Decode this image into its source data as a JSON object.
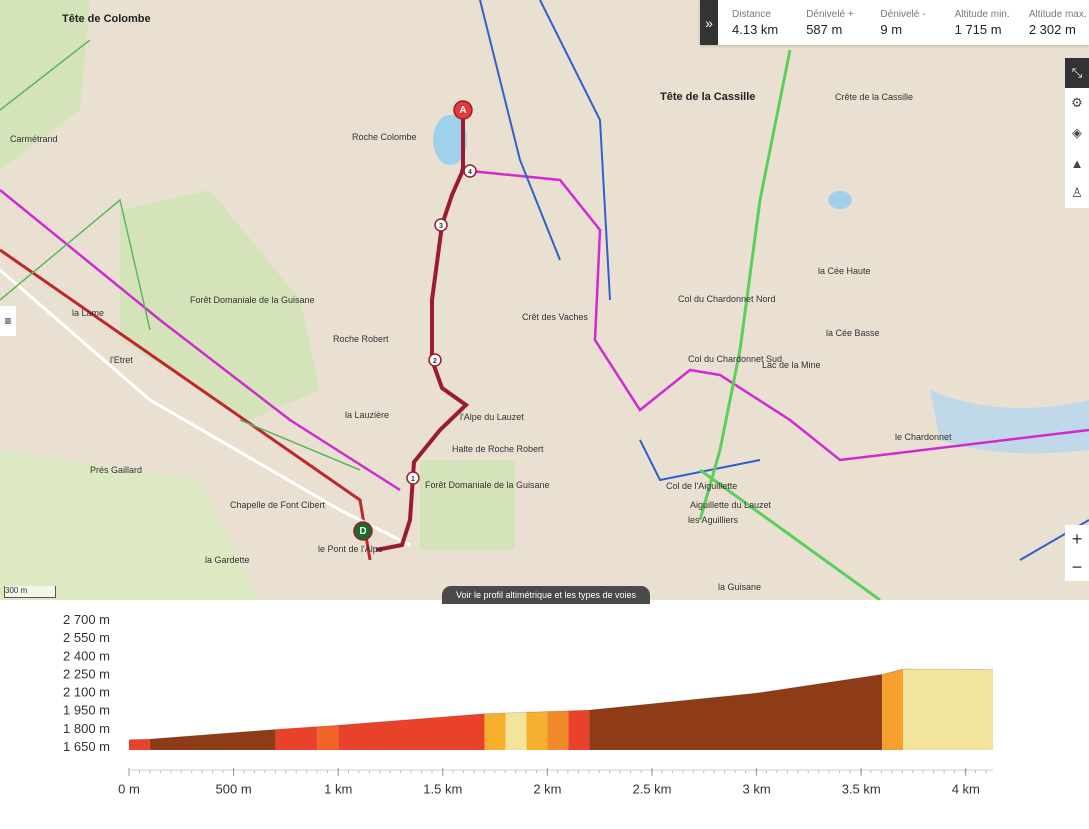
{
  "stats": [
    {
      "label": "Distance",
      "value": "4.13 km"
    },
    {
      "label": "Dénivelé +",
      "value": "587 m"
    },
    {
      "label": "Dénivelé -",
      "value": "9 m"
    },
    {
      "label": "Altitude min.",
      "value": "1 715 m"
    },
    {
      "label": "Altitude max.",
      "value": "2 302 m"
    }
  ],
  "map": {
    "labels": [
      "Tête de Colombe",
      "Tête de la Cassille",
      "Roche Colombe",
      "Carmétrand",
      "Forêt Domaniale de la Guisane",
      "Roche Robert",
      "la Lauzière",
      "Prés Gaillard",
      "Chapelle de Font Cibert",
      "le Pont de l'Alpe",
      "la Gardette",
      "l'Alpe du Lauzet",
      "Halte de Roche Robert",
      "Crêt des Vaches",
      "Col du Chardonnet Nord",
      "Col du Chardonnet Sud",
      "la Cée Haute",
      "la Cée Basse",
      "Lac de la Mine",
      "le Chardonnet",
      "Aiguillette du Lauzet",
      "les Aguilliers",
      "Col de l'Aiguillette",
      "la Guisane",
      "Forêt Domaniale de la Guisane",
      "la Lame",
      "l'Etret",
      "Crête de la Cassille"
    ],
    "markers": [
      "A",
      "D",
      "1",
      "2",
      "3",
      "4"
    ],
    "scale": "300 m",
    "profile_button": "Voir le profil altimétrique et les types de voies"
  },
  "chart_data": {
    "type": "area",
    "x": [
      0,
      0.1,
      0.7,
      1.0,
      1.7,
      2.2,
      3.0,
      3.6,
      3.7,
      4.13
    ],
    "values": [
      1715,
      1720,
      1800,
      1835,
      1930,
      1960,
      2100,
      2255,
      2300,
      2295
    ],
    "segments": [
      {
        "from": 0,
        "to": 0.1,
        "color": "#e8432a"
      },
      {
        "from": 0.1,
        "to": 0.7,
        "color": "#8e3b17"
      },
      {
        "from": 0.7,
        "to": 0.9,
        "color": "#e8432a"
      },
      {
        "from": 0.9,
        "to": 1.0,
        "color": "#f0642a"
      },
      {
        "from": 1.0,
        "to": 1.7,
        "color": "#e8432a"
      },
      {
        "from": 1.7,
        "to": 1.8,
        "color": "#f5b02e"
      },
      {
        "from": 1.8,
        "to": 1.9,
        "color": "#f2e49a"
      },
      {
        "from": 1.9,
        "to": 2.0,
        "color": "#f5b02e"
      },
      {
        "from": 2.0,
        "to": 2.1,
        "color": "#f08a2a"
      },
      {
        "from": 2.1,
        "to": 2.2,
        "color": "#e8432a"
      },
      {
        "from": 2.2,
        "to": 3.6,
        "color": "#8e3b17"
      },
      {
        "from": 3.6,
        "to": 3.7,
        "color": "#f5a02e"
      },
      {
        "from": 3.7,
        "to": 4.13,
        "color": "#f2e49a"
      }
    ],
    "xlim": [
      0,
      4.13
    ],
    "ylim": [
      1630,
      2730
    ],
    "xticks": [
      {
        "value": 0,
        "label": "0 m"
      },
      {
        "value": 0.5,
        "label": "500 m"
      },
      {
        "value": 1,
        "label": "1 km"
      },
      {
        "value": 1.5,
        "label": "1.5 km"
      },
      {
        "value": 2,
        "label": "2 km"
      },
      {
        "value": 2.5,
        "label": "2.5 km"
      },
      {
        "value": 3,
        "label": "3 km"
      },
      {
        "value": 3.5,
        "label": "3.5 km"
      },
      {
        "value": 4,
        "label": "4 km"
      }
    ],
    "yticks": [
      {
        "value": 1650,
        "label": "1 650 m"
      },
      {
        "value": 1800,
        "label": "1 800 m"
      },
      {
        "value": 1950,
        "label": "1 950 m"
      },
      {
        "value": 2100,
        "label": "2 100 m"
      },
      {
        "value": 2250,
        "label": "2 250 m"
      },
      {
        "value": 2400,
        "label": "2 400 m"
      },
      {
        "value": 2550,
        "label": "2 550 m"
      },
      {
        "value": 2700,
        "label": "2 700 m"
      }
    ]
  }
}
